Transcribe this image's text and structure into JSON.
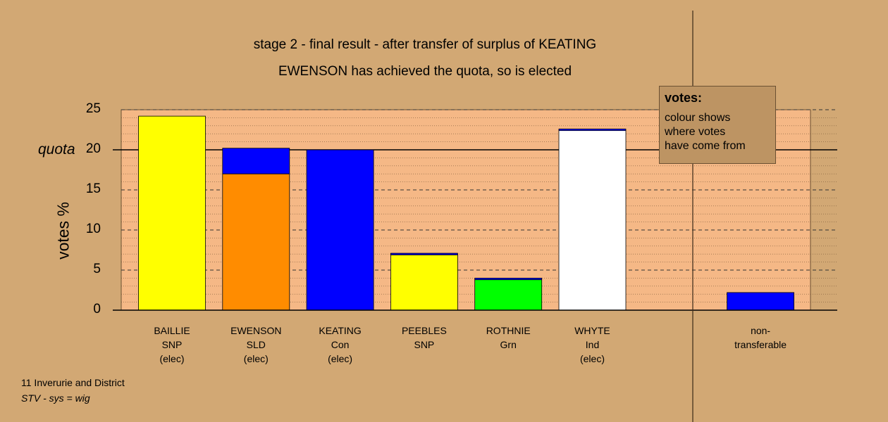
{
  "chart_data": {
    "type": "bar",
    "title": "stage 2 - final result - after transfer of surplus of KEATING",
    "subtitle": "EWENSON has achieved the quota, so is elected",
    "ylabel": "votes %",
    "ylim": [
      0,
      25
    ],
    "yticks": [
      "0",
      "5",
      "10",
      "15",
      "20",
      "25"
    ],
    "quota": 20,
    "quota_label": "quota",
    "grid": true,
    "categories": [
      {
        "name": "BAILLIE",
        "party": "SNP",
        "status": "(elec)"
      },
      {
        "name": "EWENSON",
        "party": "SLD",
        "status": "(elec)"
      },
      {
        "name": "KEATING",
        "party": "Con",
        "status": "(elec)"
      },
      {
        "name": "PEEBLES",
        "party": "SNP",
        "status": ""
      },
      {
        "name": "ROTHNIE",
        "party": "Grn",
        "status": ""
      },
      {
        "name": "WHYTE",
        "party": "Ind",
        "status": "(elec)"
      },
      {
        "name": "",
        "party": "",
        "status": ""
      },
      {
        "name": "non-",
        "party": "transferable",
        "status": ""
      }
    ],
    "bars": [
      {
        "segments": [
          {
            "value": 24.2,
            "color": "#ffff00"
          }
        ]
      },
      {
        "segments": [
          {
            "value": 17.0,
            "color": "#ff8c00"
          },
          {
            "value": 3.2,
            "color": "#0000ff"
          }
        ]
      },
      {
        "segments": [
          {
            "value": 20.0,
            "color": "#0000ff"
          }
        ]
      },
      {
        "segments": [
          {
            "value": 6.9,
            "color": "#ffff00"
          },
          {
            "value": 0.2,
            "color": "#0000ff"
          }
        ]
      },
      {
        "segments": [
          {
            "value": 3.8,
            "color": "#00ff00"
          },
          {
            "value": 0.2,
            "color": "#0000ff"
          }
        ]
      },
      {
        "segments": [
          {
            "value": 22.4,
            "color": "#ffffff"
          },
          {
            "value": 0.2,
            "color": "#0000ff"
          }
        ]
      },
      {
        "segments": []
      },
      {
        "segments": [
          {
            "value": 2.2,
            "color": "#0000ff"
          }
        ]
      }
    ],
    "legend": {
      "title": "votes:",
      "lines": [
        "colour shows",
        "where votes",
        "have come from"
      ]
    }
  },
  "footer": {
    "line1": "11 Inverurie and District",
    "line2": "STV - sys = wig"
  }
}
